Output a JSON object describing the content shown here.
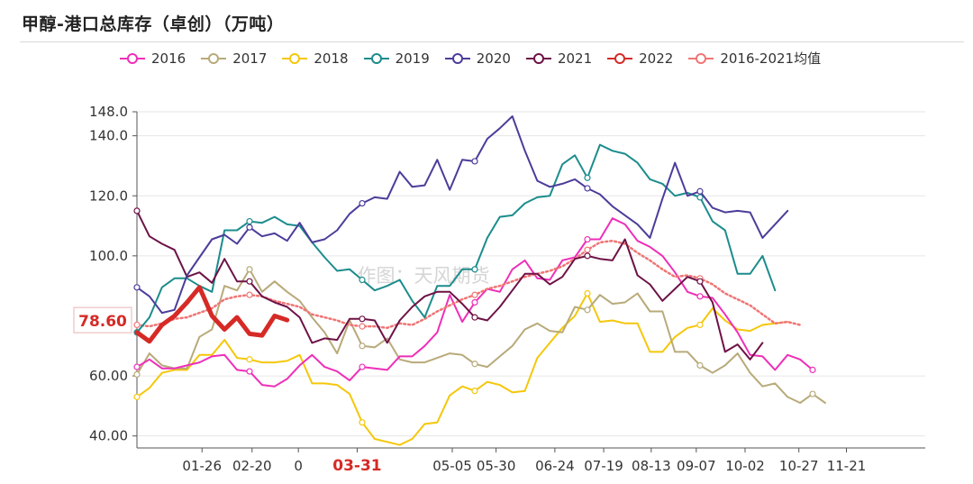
{
  "title": "甲醇-港口总库存（卓创）（万吨）",
  "watermark": "作图：天风期货",
  "current_value_label": "78.60",
  "chart_data": {
    "type": "line",
    "title": "甲醇-港口总库存（卓创）（万吨）",
    "xlabel": "",
    "ylabel": "",
    "ylim": [
      36,
      148
    ],
    "y_ticks": [
      40,
      60,
      100,
      120,
      140,
      148
    ],
    "y_tick_labels": [
      "40.00",
      "60.00",
      "100.0",
      "120.0",
      "140.0",
      "148.0"
    ],
    "x_ticks": [
      6.2,
      10.2,
      13.9,
      18.6,
      26.2,
      29.7,
      34.4,
      38.3,
      42.1,
      45.7,
      49.6,
      53.9,
      57.7
    ],
    "x_tick_labels": [
      "01-26",
      "02-20",
      "0",
      "03-31",
      "05-05",
      "05-30",
      "06-24",
      "07-19",
      "08-13",
      "09-07",
      "10-02",
      "10-27",
      "11-21"
    ],
    "highlight_tick": "03-31",
    "x_range": [
      1,
      64
    ],
    "legend_position": "top",
    "series": [
      {
        "name": "2016",
        "color": "#ee2fb8",
        "style": "solid",
        "width": 2,
        "values": [
          63.0,
          65.5,
          62.5,
          62.5,
          63.5,
          64.5,
          66.5,
          67.0,
          62.0,
          61.5,
          57.0,
          56.5,
          59.0,
          63.5,
          67.0,
          63.0,
          61.5,
          58.5,
          63.0,
          62.5,
          62.0,
          66.5,
          66.5,
          70.0,
          74.5,
          87.0,
          78.0,
          84.5,
          89.0,
          88.0,
          95.5,
          98.5,
          92.5,
          92.0,
          98.5,
          99.5,
          105.5,
          105.5,
          112.5,
          110.5,
          105.0,
          103.0,
          100.0,
          94.5,
          88.0,
          86.5,
          86.0,
          80.5,
          74.5,
          67.0,
          66.5,
          62.0,
          67.0,
          65.5,
          62.0
        ]
      },
      {
        "name": "2017",
        "color": "#b8aa7a",
        "style": "solid",
        "width": 2,
        "values": [
          60.5,
          67.5,
          63.5,
          62.5,
          62.5,
          73.0,
          75.5,
          90.0,
          88.5,
          95.5,
          88.0,
          91.5,
          88.0,
          85.0,
          79.5,
          74.5,
          67.5,
          78.5,
          70.0,
          69.5,
          72.5,
          65.5,
          64.5,
          64.5,
          66.0,
          67.5,
          67.0,
          64.0,
          63.0,
          66.5,
          70.0,
          75.5,
          77.5,
          75.0,
          74.5,
          83.0,
          82.0,
          87.0,
          84.0,
          84.5,
          87.5,
          81.5,
          81.5,
          68.0,
          68.0,
          63.5,
          61.0,
          63.5,
          67.5,
          61.0,
          56.5,
          57.5,
          53.0,
          51.0,
          54.0,
          51.0
        ]
      },
      {
        "name": "2018",
        "color": "#f5c70a",
        "style": "solid",
        "width": 2,
        "values": [
          53.0,
          56.0,
          61.0,
          62.0,
          62.0,
          67.0,
          67.0,
          72.0,
          66.0,
          65.5,
          64.5,
          64.5,
          65.0,
          67.0,
          57.5,
          57.5,
          57.0,
          54.0,
          44.5,
          39.0,
          38.0,
          37.0,
          39.0,
          44.0,
          44.5,
          53.5,
          56.5,
          55.0,
          58.0,
          57.0,
          54.5,
          55.0,
          66.0,
          71.0,
          76.0,
          80.0,
          87.5,
          78.0,
          78.5,
          77.5,
          77.5,
          68.0,
          68.0,
          73.0,
          76.0,
          77.0,
          82.5,
          78.5,
          75.5,
          75.0,
          77.0,
          77.5,
          78.0
        ]
      },
      {
        "name": "2019",
        "color": "#1c8c8c",
        "style": "solid",
        "width": 2,
        "values": [
          74.5,
          79.5,
          89.5,
          92.5,
          92.5,
          90.0,
          88.0,
          108.5,
          108.5,
          111.5,
          111.0,
          113.0,
          110.5,
          110.0,
          104.5,
          99.5,
          95.0,
          95.5,
          92.0,
          88.5,
          90.0,
          92.0,
          85.0,
          79.5,
          90.0,
          90.0,
          95.5,
          95.5,
          106.0,
          113.0,
          113.5,
          117.5,
          119.5,
          120.0,
          130.5,
          133.5,
          126.0,
          137.0,
          135.0,
          134.0,
          131.0,
          125.5,
          124.0,
          120.0,
          121.0,
          119.5,
          111.5,
          108.5,
          94.0,
          94.0,
          100.0,
          88.5
        ]
      },
      {
        "name": "2020",
        "color": "#4b3d9a",
        "style": "solid",
        "width": 2,
        "values": [
          89.5,
          86.5,
          81.0,
          82.0,
          93.5,
          99.5,
          105.5,
          107.0,
          104.0,
          109.5,
          106.5,
          107.5,
          105.0,
          111.0,
          104.5,
          105.5,
          108.5,
          114.0,
          117.5,
          119.5,
          119.0,
          128.0,
          123.0,
          123.5,
          132.0,
          122.0,
          132.0,
          131.5,
          139.0,
          142.5,
          146.5,
          135.0,
          125.0,
          123.0,
          124.0,
          125.5,
          122.5,
          120.5,
          116.5,
          113.5,
          110.5,
          106.0,
          119.0,
          131.0,
          120.0,
          121.5,
          116.0,
          114.5,
          115.0,
          114.5,
          106.0,
          110.5,
          115.0
        ]
      },
      {
        "name": "2021",
        "color": "#6e1246",
        "style": "solid",
        "width": 2,
        "values": [
          115.0,
          106.5,
          104.0,
          102.0,
          93.0,
          94.5,
          91.0,
          99.0,
          91.5,
          91.5,
          86.5,
          84.5,
          83.0,
          79.5,
          71.0,
          72.5,
          72.0,
          79.0,
          79.0,
          78.5,
          71.0,
          78.5,
          83.0,
          86.5,
          88.0,
          88.0,
          84.0,
          79.5,
          78.5,
          83.0,
          88.5,
          94.0,
          94.0,
          90.5,
          93.0,
          99.0,
          100.0,
          99.0,
          98.5,
          105.5,
          93.5,
          90.5,
          85.0,
          89.0,
          93.0,
          91.5,
          84.5,
          68.0,
          70.5,
          65.5,
          71.0
        ]
      },
      {
        "name": "2022",
        "color": "#d62a26",
        "style": "solid",
        "width": 5,
        "values": [
          74.5,
          71.5,
          77.0,
          80.0,
          84.5,
          89.5,
          80.0,
          75.5,
          79.5,
          74.0,
          73.5,
          80.0,
          78.6
        ]
      },
      {
        "name": "2016-2021均值",
        "color": "#f07575",
        "style": "dotted",
        "width": 2.5,
        "values": [
          77.0,
          76.5,
          77.5,
          79.0,
          79.5,
          81.0,
          82.5,
          85.5,
          86.5,
          87.0,
          86.5,
          85.0,
          84.0,
          83.0,
          80.5,
          79.5,
          78.5,
          77.0,
          76.5,
          76.5,
          76.0,
          77.5,
          77.0,
          79.0,
          81.5,
          83.5,
          85.5,
          87.0,
          89.0,
          90.0,
          91.5,
          93.0,
          94.0,
          95.0,
          96.5,
          99.0,
          102.0,
          104.5,
          105.0,
          104.0,
          101.0,
          98.5,
          95.5,
          93.0,
          93.5,
          92.5,
          90.5,
          87.5,
          85.5,
          83.5,
          80.5,
          77.5,
          78.0,
          77.0
        ]
      }
    ]
  }
}
